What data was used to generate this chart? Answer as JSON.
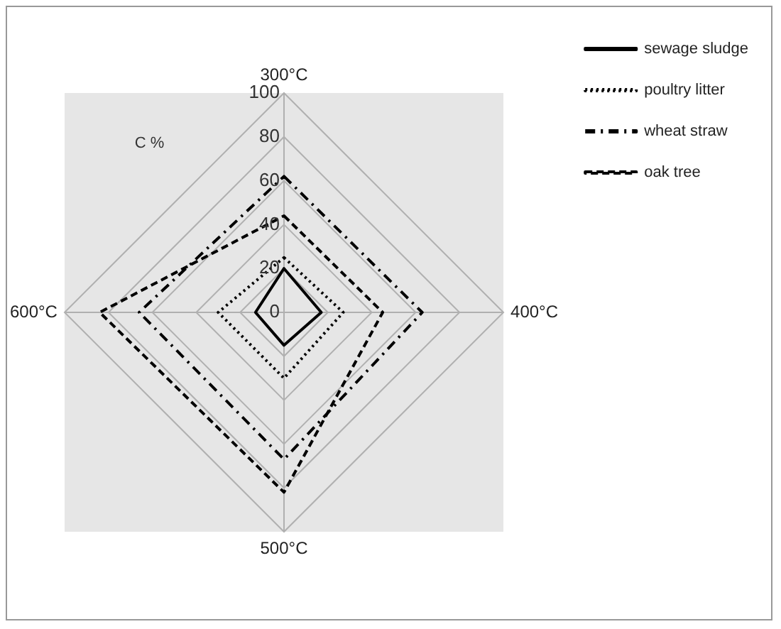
{
  "chart_data": {
    "type": "radar",
    "categories": [
      "300°C",
      "400°C",
      "500°C",
      "600°C"
    ],
    "series": [
      {
        "name": "sewage sludge",
        "color": "#000000",
        "line_style": "solid",
        "values": [
          20,
          17,
          15,
          13
        ]
      },
      {
        "name": "poultry litter",
        "color": "#000000",
        "line_style": "dotted",
        "values": [
          25,
          27,
          30,
          30
        ]
      },
      {
        "name": "wheat straw",
        "color": "#000000",
        "line_style": "dashdot",
        "values": [
          62,
          63,
          67,
          66
        ]
      },
      {
        "name": "oak tree",
        "color": "#000000",
        "line_style": "dashed",
        "values": [
          44,
          45,
          82,
          84
        ]
      }
    ],
    "ylim": [
      0,
      100
    ],
    "yticks": [
      0,
      20,
      40,
      60,
      80,
      100
    ],
    "grid": true,
    "legend": "top right",
    "marker": "none",
    "annotations": [
      "C %"
    ]
  }
}
